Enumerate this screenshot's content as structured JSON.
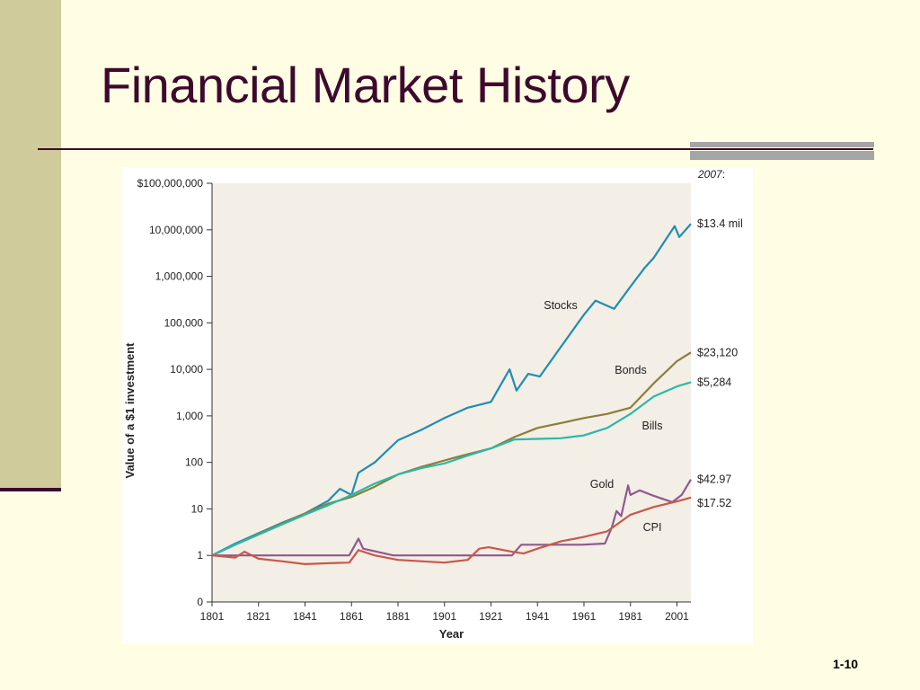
{
  "slide": {
    "title": "Financial Market History",
    "page_number": "1-10"
  },
  "colors": {
    "background": "#fffde3",
    "accent_bar": "#cfcb9a",
    "title_text": "#3d0a2e",
    "plot_background": "#f3eee6"
  },
  "chart_data": {
    "type": "line",
    "title": "",
    "xlabel": "Year",
    "ylabel": "Value of a $1 investment",
    "y_scale": "log",
    "xlim": [
      1801,
      2007
    ],
    "ylim": [
      0.1,
      100000000
    ],
    "x_ticks": [
      1801,
      1821,
      1841,
      1861,
      1881,
      1901,
      1921,
      1941,
      1961,
      1981,
      2001
    ],
    "y_ticks": [
      {
        "value": 0.1,
        "label": "0"
      },
      {
        "value": 1,
        "label": "1"
      },
      {
        "value": 10,
        "label": "10"
      },
      {
        "value": 100,
        "label": "100"
      },
      {
        "value": 1000,
        "label": "1,000"
      },
      {
        "value": 10000,
        "label": "10,000"
      },
      {
        "value": 100000,
        "label": "100,000"
      },
      {
        "value": 1000000,
        "label": "1,000,000"
      },
      {
        "value": 10000000,
        "label": "10,000,000"
      },
      {
        "value": 100000000,
        "label": "$100,000,000"
      }
    ],
    "grid": false,
    "annotation_year": "2007",
    "series": [
      {
        "name": "Stocks",
        "end_label": "$13.4 mil",
        "color": "#1f8db2",
        "x": [
          1801,
          1811,
          1821,
          1831,
          1841,
          1851,
          1856,
          1861,
          1864,
          1871,
          1881,
          1891,
          1901,
          1911,
          1921,
          1929,
          1932,
          1937,
          1942,
          1951,
          1961,
          1966,
          1974,
          1981,
          1987,
          1991,
          2000,
          2002,
          2007
        ],
        "y": [
          1,
          1.8,
          3,
          5,
          8,
          15,
          27,
          20,
          60,
          100,
          300,
          500,
          900,
          1500,
          2000,
          10000,
          3500,
          8000,
          7000,
          30000,
          150000,
          300000,
          200000,
          600000,
          1500000,
          2500000,
          12000000,
          7000000,
          13400000
        ]
      },
      {
        "name": "Bonds",
        "end_label": "$23,120",
        "color": "#8c7d3a",
        "x": [
          1801,
          1811,
          1821,
          1831,
          1841,
          1851,
          1861,
          1871,
          1881,
          1891,
          1901,
          1911,
          1921,
          1931,
          1941,
          1951,
          1961,
          1971,
          1981,
          1991,
          2001,
          2007
        ],
        "y": [
          1,
          1.7,
          2.9,
          4.8,
          8,
          13,
          18,
          30,
          55,
          80,
          110,
          150,
          200,
          350,
          550,
          700,
          900,
          1100,
          1500,
          5000,
          15000,
          23120
        ]
      },
      {
        "name": "Bills",
        "end_label": "$5,284",
        "color": "#2bb8a8",
        "x": [
          1801,
          1811,
          1821,
          1831,
          1841,
          1851,
          1861,
          1871,
          1881,
          1891,
          1901,
          1911,
          1921,
          1931,
          1941,
          1951,
          1961,
          1971,
          1981,
          1991,
          2001,
          2007
        ],
        "y": [
          1,
          1.7,
          2.8,
          4.6,
          7.5,
          12,
          20,
          35,
          55,
          75,
          95,
          140,
          200,
          310,
          320,
          330,
          380,
          550,
          1100,
          2600,
          4300,
          5284
        ]
      },
      {
        "name": "Gold",
        "end_label": "$42.97",
        "color": "#8e5a8e",
        "x": [
          1801,
          1810,
          1820,
          1834,
          1860,
          1862,
          1864,
          1866,
          1879,
          1930,
          1934,
          1960,
          1970,
          1973,
          1975,
          1977,
          1980,
          1981,
          1985,
          1990,
          1999,
          2003,
          2007
        ],
        "y": [
          1,
          1,
          1,
          1,
          1,
          1.5,
          2.3,
          1.4,
          1,
          1,
          1.7,
          1.7,
          1.8,
          4,
          9,
          7,
          32,
          20,
          25,
          20,
          14,
          20,
          42.97
        ]
      },
      {
        "name": "CPI",
        "end_label": "$17.52",
        "color": "#c8584a",
        "x": [
          1801,
          1811,
          1815,
          1821,
          1831,
          1841,
          1851,
          1860,
          1864,
          1871,
          1881,
          1891,
          1901,
          1911,
          1916,
          1920,
          1930,
          1935,
          1941,
          1951,
          1961,
          1971,
          1981,
          1991,
          2001,
          2007
        ],
        "y": [
          1,
          0.9,
          1.2,
          0.85,
          0.75,
          0.65,
          0.68,
          0.7,
          1.3,
          1.0,
          0.8,
          0.75,
          0.7,
          0.8,
          1.4,
          1.5,
          1.2,
          1.1,
          1.4,
          2.0,
          2.5,
          3.3,
          7.5,
          11,
          14.5,
          17.52
        ]
      }
    ]
  }
}
